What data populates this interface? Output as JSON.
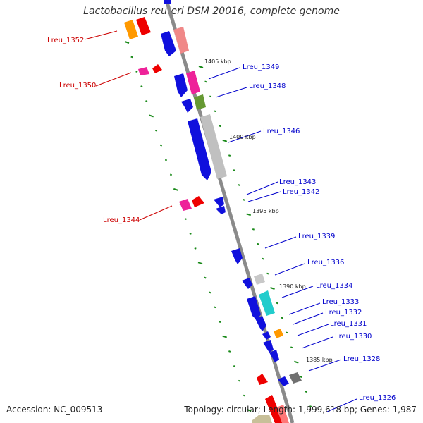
{
  "header": {
    "title": "Lactobacillus reuteri DSM 20016, complete genome"
  },
  "footer": {
    "accession": "Accession: NC_009513",
    "summary": "Topology: circular; Length: 1,999,618 bp; Genes: 1,987"
  },
  "scale_labels": [
    "1405 kbp",
    "1400 kbp",
    "1395 kbp",
    "1390 kbp",
    "1385 kbp"
  ],
  "gene_labels": [
    {
      "text": "Lreu_1352",
      "color": "#cc0000"
    },
    {
      "text": "Lreu_1350",
      "color": "#cc0000"
    },
    {
      "text": "Lreu_1344",
      "color": "#cc0000"
    },
    {
      "text": "Lreu_1349",
      "color": "#0000cc"
    },
    {
      "text": "Lreu_1348",
      "color": "#0000cc"
    },
    {
      "text": "Lreu_1346",
      "color": "#0000cc"
    },
    {
      "text": "Lreu_1343",
      "color": "#0000cc"
    },
    {
      "text": "Lreu_1342",
      "color": "#0000cc"
    },
    {
      "text": "Lreu_1339",
      "color": "#0000cc"
    },
    {
      "text": "Lreu_1336",
      "color": "#0000cc"
    },
    {
      "text": "Lreu_1334",
      "color": "#0000cc"
    },
    {
      "text": "Lreu_1333",
      "color": "#0000cc"
    },
    {
      "text": "Lreu_1332",
      "color": "#0000cc"
    },
    {
      "text": "Lreu_1331",
      "color": "#0000cc"
    },
    {
      "text": "Lreu_1330",
      "color": "#0000cc"
    },
    {
      "text": "Lreu_1328",
      "color": "#0000cc"
    },
    {
      "text": "Lreu_1326",
      "color": "#0000cc"
    }
  ],
  "colors": {
    "backbone": "#888888",
    "tick": "#1a8a1a",
    "reverse_label": "#cc0000",
    "forward_label": "#0000cc"
  }
}
